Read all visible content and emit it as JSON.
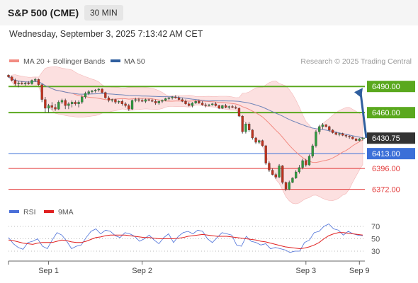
{
  "header": {
    "title": "S&P 500 (CME)",
    "timeframe": "30 MIN",
    "datetime": "Wednesday, September 3, 2025 7:13:42 AM CET"
  },
  "chart_data": [
    {
      "type": "candlestick",
      "panel": "price",
      "legend": [
        {
          "name": "MA 20 + Bollinger Bands",
          "color": "#f28b82"
        },
        {
          "name": "MA 50",
          "color": "#2f5e9e"
        }
      ],
      "credit": "Research © 2025 Trading Central",
      "ylim": [
        6362,
        6508
      ],
      "current_price": {
        "label": "6430.75",
        "value": 6430.75,
        "color": "#333333"
      },
      "levels": [
        {
          "label": "6490.00",
          "value": 6490,
          "kind": "resistance",
          "color": "#5aa81e"
        },
        {
          "label": "6460.00",
          "value": 6460,
          "kind": "resistance",
          "color": "#5aa81e"
        },
        {
          "label": "6413.00",
          "value": 6413,
          "kind": "pivot",
          "color": "#3b6fd8"
        },
        {
          "label": "6396.00",
          "value": 6396,
          "kind": "support",
          "color": "#e33b3b"
        },
        {
          "label": "6372.00",
          "value": 6372,
          "kind": "support",
          "color": "#e33b3b"
        }
      ],
      "arrow": {
        "from": 6431,
        "to": 6490,
        "color": "#2f5e9e"
      },
      "ohlc": [
        [
          6503,
          6504,
          6500,
          6501
        ],
        [
          6501,
          6502,
          6496,
          6497
        ],
        [
          6497,
          6499,
          6491,
          6493
        ],
        [
          6493,
          6496,
          6489,
          6494
        ],
        [
          6494,
          6496,
          6492,
          6493
        ],
        [
          6493,
          6495,
          6491,
          6494
        ],
        [
          6494,
          6496,
          6492,
          6493
        ],
        [
          6493,
          6498,
          6492,
          6497
        ],
        [
          6497,
          6500,
          6495,
          6498
        ],
        [
          6498,
          6499,
          6491,
          6492
        ],
        [
          6492,
          6493,
          6472,
          6475
        ],
        [
          6475,
          6478,
          6460,
          6465
        ],
        [
          6465,
          6470,
          6460,
          6468
        ],
        [
          6468,
          6472,
          6463,
          6466
        ],
        [
          6466,
          6470,
          6462,
          6464
        ],
        [
          6464,
          6474,
          6463,
          6472
        ],
        [
          6472,
          6476,
          6470,
          6474
        ],
        [
          6474,
          6476,
          6464,
          6468
        ],
        [
          6468,
          6472,
          6464,
          6470
        ],
        [
          6470,
          6474,
          6466,
          6472
        ],
        [
          6472,
          6474,
          6468,
          6470
        ],
        [
          6470,
          6474,
          6466,
          6472
        ],
        [
          6472,
          6480,
          6470,
          6478
        ],
        [
          6478,
          6484,
          6476,
          6482
        ],
        [
          6482,
          6486,
          6480,
          6484
        ],
        [
          6484,
          6486,
          6482,
          6485
        ],
        [
          6485,
          6487,
          6483,
          6486
        ],
        [
          6486,
          6488,
          6484,
          6487
        ],
        [
          6487,
          6488,
          6482,
          6483
        ],
        [
          6483,
          6484,
          6476,
          6477
        ],
        [
          6477,
          6479,
          6472,
          6474
        ],
        [
          6474,
          6476,
          6472,
          6475
        ],
        [
          6475,
          6476,
          6470,
          6472
        ],
        [
          6472,
          6474,
          6470,
          6473
        ],
        [
          6473,
          6475,
          6468,
          6470
        ],
        [
          6470,
          6472,
          6466,
          6468
        ],
        [
          6468,
          6470,
          6462,
          6464
        ],
        [
          6464,
          6475,
          6463,
          6474
        ],
        [
          6474,
          6477,
          6472,
          6475
        ],
        [
          6475,
          6477,
          6472,
          6474
        ],
        [
          6474,
          6476,
          6472,
          6473
        ],
        [
          6473,
          6476,
          6471,
          6475
        ],
        [
          6475,
          6476,
          6473,
          6474
        ],
        [
          6474,
          6476,
          6472,
          6473
        ],
        [
          6473,
          6475,
          6469,
          6471
        ],
        [
          6471,
          6474,
          6469,
          6473
        ],
        [
          6473,
          6475,
          6471,
          6474
        ],
        [
          6474,
          6477,
          6473,
          6476
        ],
        [
          6476,
          6478,
          6474,
          6477
        ],
        [
          6477,
          6479,
          6475,
          6478
        ],
        [
          6478,
          6480,
          6476,
          6477
        ],
        [
          6477,
          6479,
          6474,
          6475
        ],
        [
          6475,
          6477,
          6472,
          6473
        ],
        [
          6473,
          6475,
          6469,
          6470
        ],
        [
          6470,
          6472,
          6467,
          6468
        ],
        [
          6468,
          6472,
          6466,
          6471
        ],
        [
          6471,
          6474,
          6470,
          6473
        ],
        [
          6473,
          6475,
          6470,
          6471
        ],
        [
          6471,
          6473,
          6468,
          6469
        ],
        [
          6469,
          6471,
          6466,
          6468
        ],
        [
          6468,
          6470,
          6467,
          6469
        ],
        [
          6469,
          6471,
          6468,
          6470
        ],
        [
          6470,
          6472,
          6467,
          6468
        ],
        [
          6468,
          6469,
          6464,
          6465
        ],
        [
          6465,
          6469,
          6464,
          6468
        ],
        [
          6468,
          6470,
          6465,
          6466
        ],
        [
          6466,
          6468,
          6464,
          6467
        ],
        [
          6467,
          6469,
          6465,
          6466
        ],
        [
          6466,
          6468,
          6464,
          6465
        ],
        [
          6465,
          6466,
          6455,
          6456
        ],
        [
          6456,
          6457,
          6436,
          6438
        ],
        [
          6438,
          6449,
          6436,
          6447
        ],
        [
          6447,
          6449,
          6438,
          6440
        ],
        [
          6440,
          6441,
          6429,
          6431
        ],
        [
          6431,
          6432,
          6424,
          6426
        ],
        [
          6426,
          6429,
          6424,
          6428
        ],
        [
          6428,
          6429,
          6421,
          6422
        ],
        [
          6422,
          6423,
          6400,
          6402
        ],
        [
          6402,
          6404,
          6392,
          6394
        ],
        [
          6394,
          6396,
          6388,
          6389
        ],
        [
          6389,
          6391,
          6384,
          6386
        ],
        [
          6386,
          6401,
          6385,
          6399
        ],
        [
          6399,
          6400,
          6378,
          6380
        ],
        [
          6380,
          6381,
          6370,
          6372
        ],
        [
          6372,
          6382,
          6371,
          6380
        ],
        [
          6380,
          6386,
          6379,
          6385
        ],
        [
          6385,
          6394,
          6384,
          6392
        ],
        [
          6392,
          6400,
          6390,
          6397
        ],
        [
          6397,
          6407,
          6395,
          6405
        ],
        [
          6405,
          6407,
          6398,
          6400
        ],
        [
          6400,
          6412,
          6399,
          6410
        ],
        [
          6410,
          6424,
          6408,
          6422
        ],
        [
          6422,
          6440,
          6420,
          6438
        ],
        [
          6438,
          6446,
          6435,
          6444
        ],
        [
          6444,
          6448,
          6441,
          6446
        ],
        [
          6446,
          6447,
          6443,
          6444
        ],
        [
          6444,
          6445,
          6438,
          6440
        ],
        [
          6440,
          6441,
          6436,
          6437
        ],
        [
          6437,
          6438,
          6434,
          6435
        ],
        [
          6435,
          6437,
          6433,
          6436
        ],
        [
          6436,
          6437,
          6433,
          6434
        ],
        [
          6434,
          6435,
          6431,
          6433
        ],
        [
          6433,
          6434,
          6430,
          6432
        ],
        [
          6432,
          6433,
          6429,
          6430
        ],
        [
          6430,
          6431,
          6427,
          6428
        ],
        [
          6428,
          6431,
          6427,
          6430
        ],
        [
          6430,
          6432,
          6428,
          6431
        ]
      ]
    },
    {
      "type": "line",
      "panel": "indicator",
      "legend": [
        {
          "name": "RSI",
          "color": "#4a6fd8"
        },
        {
          "name": "9MA",
          "color": "#e02020"
        }
      ],
      "ylim": [
        22,
        78
      ],
      "y_ticks": [
        {
          "label": "70",
          "value": 70
        },
        {
          "label": "50",
          "value": 50
        },
        {
          "label": "30",
          "value": 30
        }
      ],
      "series": [
        {
          "name": "RSI",
          "color": "#4a6fd8",
          "values": [
            52,
            42,
            36,
            33,
            44,
            46,
            50,
            38,
            34,
            48,
            60,
            56,
            46,
            34,
            38,
            40,
            52,
            62,
            66,
            58,
            64,
            62,
            55,
            52,
            60,
            58,
            54,
            46,
            50,
            56,
            48,
            42,
            52,
            58,
            44,
            54,
            60,
            62,
            58,
            64,
            62,
            50,
            44,
            52,
            60,
            58,
            56,
            40,
            38,
            54,
            46,
            44,
            40,
            42,
            34,
            36,
            34,
            32,
            28,
            30,
            30,
            44,
            48,
            60,
            62,
            70,
            74,
            66,
            64,
            56,
            62,
            58,
            56,
            55
          ]
        },
        {
          "name": "9MA",
          "color": "#e02020",
          "values": [
            48,
            47,
            45,
            43,
            42,
            41,
            43,
            44,
            44,
            44,
            46,
            48,
            47,
            45,
            44,
            44,
            46,
            49,
            52,
            53,
            55,
            56,
            56,
            56,
            56,
            55,
            54,
            53,
            52,
            52,
            51,
            50,
            50,
            50,
            50,
            51,
            52,
            54,
            55,
            56,
            57,
            56,
            55,
            54,
            54,
            54,
            53,
            52,
            51,
            50,
            49,
            48,
            46,
            45,
            43,
            41,
            39,
            37,
            36,
            35,
            34,
            35,
            37,
            40,
            44,
            50,
            55,
            58,
            60,
            60,
            59,
            58,
            57,
            56
          ]
        }
      ]
    }
  ],
  "x_axis": {
    "ticks": [
      {
        "label": "Sep 1",
        "index": 12
      },
      {
        "label": "Sep 2",
        "index": 40
      },
      {
        "label": "Sep 3",
        "index": 89
      },
      {
        "label": "Sep 9",
        "index": 105
      }
    ]
  }
}
